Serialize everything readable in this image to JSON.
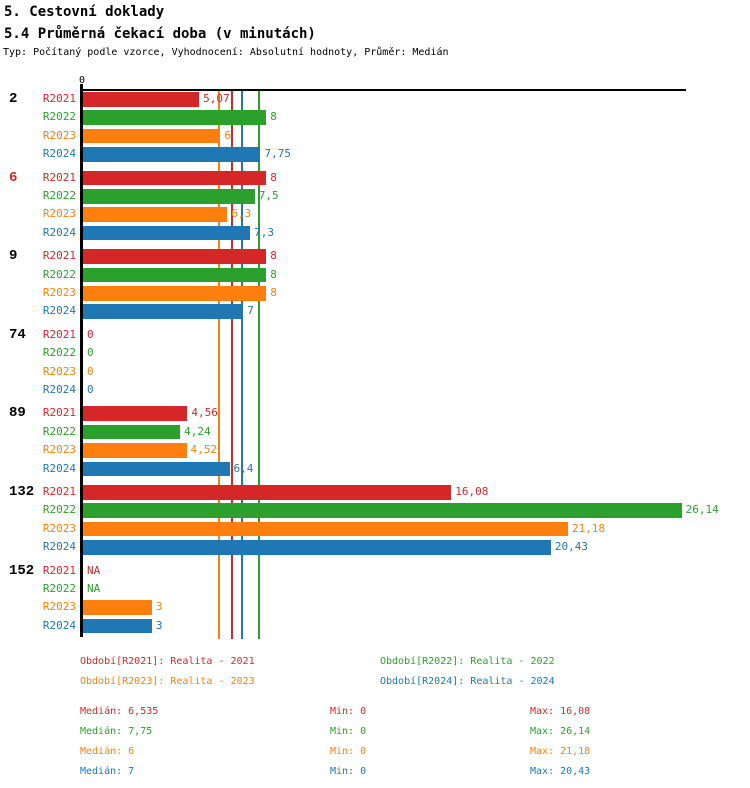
{
  "header": {
    "title1": "5. Cestovní doklady",
    "title2": "5.4 Průměrná čekací doba (v minutách)",
    "subtitle": "Typ: Počítaný podle vzorce, Vyhodnocení: Absolutní hodnoty, Průměr: Medián"
  },
  "colors": {
    "R2021": "#d62728",
    "R2022": "#2ca02c",
    "R2023": "#ff7f0e",
    "R2024": "#1f77b4",
    "axis": "#000000",
    "group_label_default": "#000000",
    "group_label_highlight": "#d62728"
  },
  "chart_data": {
    "type": "bar",
    "orientation": "horizontal",
    "title": "5.4 Průměrná čekací doba (v minutách)",
    "xlabel": "",
    "ylabel": "",
    "xlim": [
      0,
      26.4
    ],
    "axis_zero_label": "0",
    "grid": false,
    "legend_position": "bottom",
    "series_names": [
      "R2021",
      "R2022",
      "R2023",
      "R2024"
    ],
    "groups": [
      {
        "label": "2",
        "highlighted": false,
        "values": [
          5.07,
          8,
          6,
          7.75
        ],
        "display": [
          "5,07",
          "8",
          "6",
          "7,75"
        ]
      },
      {
        "label": "6",
        "highlighted": true,
        "values": [
          8,
          7.5,
          6.3,
          7.3
        ],
        "display": [
          "8",
          "7,5",
          "6,3",
          "7,3"
        ]
      },
      {
        "label": "9",
        "highlighted": false,
        "values": [
          8,
          8,
          8,
          7
        ],
        "display": [
          "8",
          "8",
          "8",
          "7"
        ]
      },
      {
        "label": "74",
        "highlighted": false,
        "values": [
          0,
          0,
          0,
          0
        ],
        "display": [
          "0",
          "0",
          "0",
          "0"
        ]
      },
      {
        "label": "89",
        "highlighted": false,
        "values": [
          4.56,
          4.24,
          4.52,
          6.4
        ],
        "display": [
          "4,56",
          "4,24",
          "4,52",
          "6,4"
        ]
      },
      {
        "label": "132",
        "highlighted": false,
        "values": [
          16.08,
          26.14,
          21.18,
          20.43
        ],
        "display": [
          "16,08",
          "26,14",
          "21,18",
          "20,43"
        ]
      },
      {
        "label": "152",
        "highlighted": false,
        "values": [
          null,
          null,
          3,
          3
        ],
        "display": [
          "NA",
          "NA",
          "3",
          "3"
        ]
      }
    ],
    "median_lines": [
      {
        "series": "R2023",
        "value": 6
      },
      {
        "series": "R2021",
        "value": 6.535
      },
      {
        "series": "R2024",
        "value": 7
      },
      {
        "series": "R2022",
        "value": 7.75
      }
    ]
  },
  "legend": [
    {
      "series": "R2021",
      "label": "Období[R2021]: Realita - 2021"
    },
    {
      "series": "R2022",
      "label": "Období[R2022]: Realita - 2022"
    },
    {
      "series": "R2023",
      "label": "Období[R2023]: Realita - 2023"
    },
    {
      "series": "R2024",
      "label": "Období[R2024]: Realita - 2024"
    }
  ],
  "stats": [
    {
      "series": "R2021",
      "median": "Medián: 6,535",
      "min": "Min: 0",
      "max": "Max: 16,08"
    },
    {
      "series": "R2022",
      "median": "Medián: 7,75",
      "min": "Min: 0",
      "max": "Max: 26,14"
    },
    {
      "series": "R2023",
      "median": "Medián: 6",
      "min": "Min: 0",
      "max": "Max: 21,18"
    },
    {
      "series": "R2024",
      "median": "Medián: 7",
      "min": "Min: 0",
      "max": "Max: 20,43"
    }
  ]
}
